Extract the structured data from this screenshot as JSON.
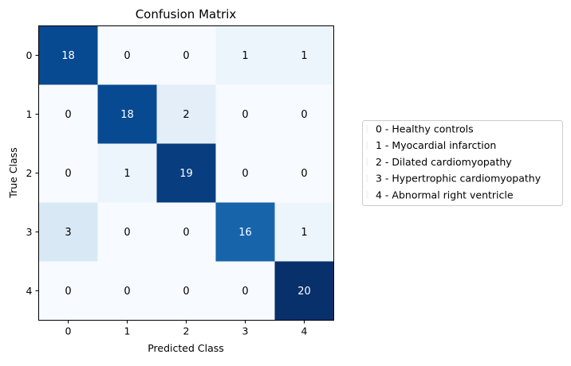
{
  "chart_data": {
    "type": "heatmap",
    "title": "Confusion Matrix",
    "xlabel": "Predicted Class",
    "ylabel": "True Class",
    "x_tick_labels": [
      "0",
      "1",
      "2",
      "3",
      "4"
    ],
    "y_tick_labels": [
      "0",
      "1",
      "2",
      "3",
      "4"
    ],
    "matrix": [
      [
        18,
        0,
        0,
        1,
        1
      ],
      [
        0,
        18,
        2,
        0,
        0
      ],
      [
        0,
        1,
        19,
        0,
        0
      ],
      [
        3,
        0,
        0,
        16,
        1
      ],
      [
        0,
        0,
        0,
        0,
        20
      ]
    ],
    "color_range": [
      0,
      20
    ],
    "colormap": "Blues",
    "colormap_low": "#f7fbff",
    "colormap_high": "#08306b",
    "text_color_light": "#ffffff",
    "text_color_dark": "#000000",
    "legend": {
      "placement": "center-right",
      "entries": [
        "0 - Healthy controls",
        "1 - Myocardial infarction",
        "2 - Dilated cardiomyopathy",
        "3 - Hypertrophic cardiomyopathy",
        "4 - Abnormal right ventricle"
      ]
    }
  }
}
